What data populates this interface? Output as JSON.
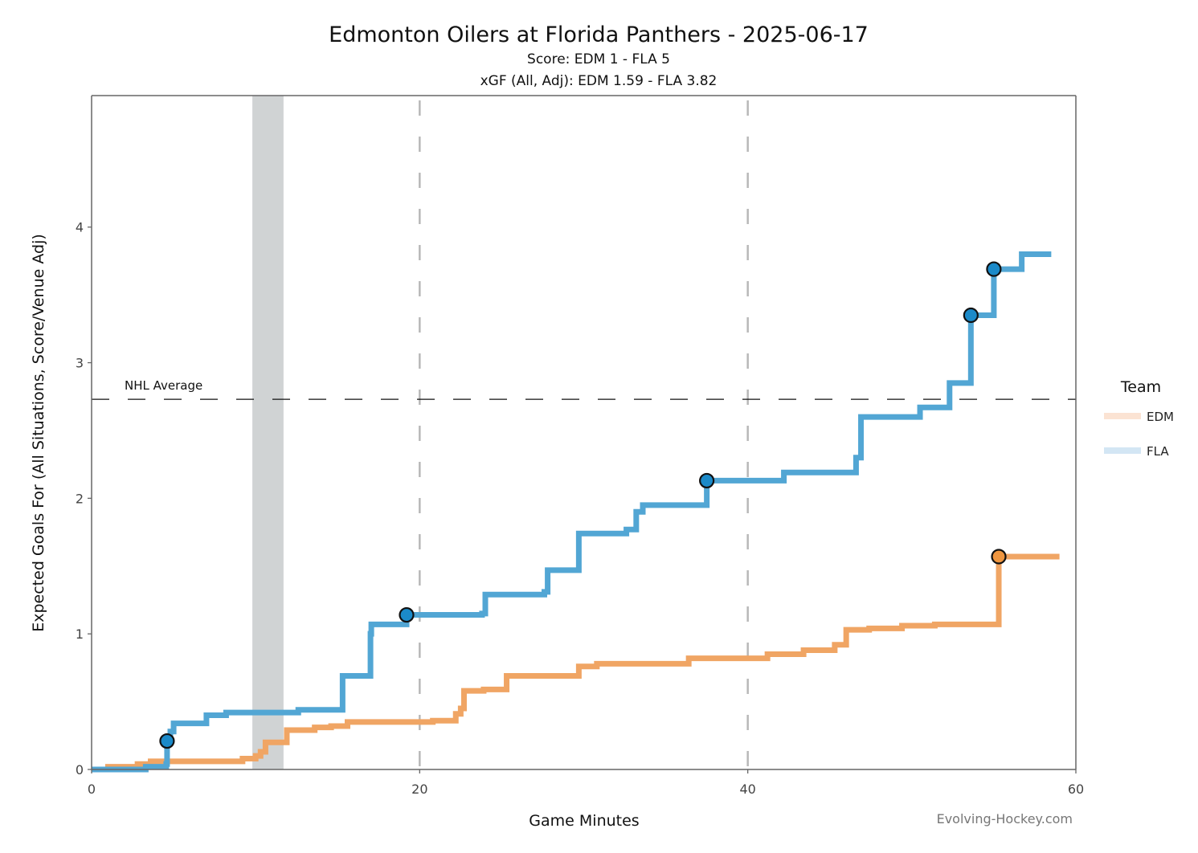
{
  "chart_data": {
    "type": "line",
    "step": true,
    "title": "Edmonton Oilers at Florida Panthers - 2025-06-17",
    "subtitles": [
      "Score: EDM 1 - FLA 5",
      "xGF (All, Adj): EDM 1.59 - FLA 3.82"
    ],
    "xlabel": "Game Minutes",
    "ylabel": "Expected Goals For (All Situations, Score/Venue Adj)",
    "xlim": [
      0,
      60
    ],
    "ylim": [
      0,
      4.97
    ],
    "xticks": [
      0,
      20,
      40,
      60
    ],
    "yticks": [
      0,
      1,
      2,
      3,
      4
    ],
    "period_lines": [
      20,
      40
    ],
    "shaded_interval": [
      9.8,
      11.7
    ],
    "reference_line": {
      "label": "NHL Average",
      "value": 2.73
    },
    "legend": {
      "title": "Team",
      "position": "right",
      "entries": [
        {
          "name": "EDM",
          "color": "#fbe3d3"
        },
        {
          "name": "FLA",
          "color": "#d3e6f4"
        }
      ]
    },
    "credit": "Evolving-Hockey.com",
    "series": [
      {
        "name": "EDM",
        "color": "#f0a564",
        "marker_color": "#ef9640",
        "x": [
          0,
          1.0,
          2.8,
          3.6,
          9.2,
          10.0,
          10.3,
          10.6,
          11.9,
          13.6,
          14.6,
          15.6,
          20.8,
          22.2,
          22.5,
          22.7,
          23.9,
          25.3,
          29.7,
          30.8,
          36.4,
          41.2,
          43.4,
          45.3,
          46.0,
          47.4,
          49.4,
          51.4,
          55.3,
          59.0
        ],
        "y": [
          0,
          0.02,
          0.04,
          0.06,
          0.08,
          0.1,
          0.13,
          0.2,
          0.29,
          0.31,
          0.32,
          0.35,
          0.36,
          0.41,
          0.45,
          0.58,
          0.59,
          0.69,
          0.76,
          0.78,
          0.82,
          0.85,
          0.88,
          0.92,
          1.03,
          1.04,
          1.06,
          1.07,
          1.57,
          1.57
        ],
        "goals": [
          {
            "x": 55.3,
            "y": 1.57
          }
        ]
      },
      {
        "name": "FLA",
        "color": "#52a6d4",
        "marker_color": "#1b8ac9",
        "x": [
          0,
          3.3,
          4.55,
          4.6,
          4.8,
          5.0,
          7.0,
          8.2,
          12.6,
          15.3,
          17.0,
          17.05,
          19.2,
          23.8,
          24.0,
          27.6,
          27.8,
          29.7,
          32.6,
          33.2,
          33.6,
          37.5,
          42.2,
          46.6,
          46.9,
          50.5,
          52.3,
          53.6,
          55.0,
          56.7,
          58.5
        ],
        "y": [
          0,
          0.02,
          0.04,
          0.21,
          0.28,
          0.34,
          0.4,
          0.42,
          0.44,
          0.69,
          1.0,
          1.07,
          1.14,
          1.15,
          1.29,
          1.31,
          1.47,
          1.74,
          1.77,
          1.9,
          1.95,
          2.13,
          2.19,
          2.3,
          2.6,
          2.67,
          2.85,
          3.35,
          3.69,
          3.8,
          3.8
        ],
        "goals": [
          {
            "x": 4.6,
            "y": 0.21
          },
          {
            "x": 19.2,
            "y": 1.14
          },
          {
            "x": 37.5,
            "y": 2.13
          },
          {
            "x": 53.6,
            "y": 3.35
          },
          {
            "x": 55.0,
            "y": 3.69
          }
        ]
      }
    ]
  }
}
